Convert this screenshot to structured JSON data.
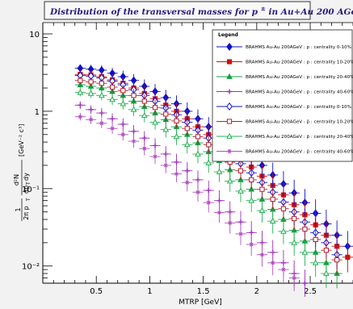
{
  "chart_data": {
    "type": "scatter",
    "title_pre": "Distribution of the transversal masses for p",
    "title_sup": "±",
    "title_post": " in Au+Au 200 AGeV BRAHMS",
    "xlabel": "MTRP [GeV]",
    "ylabel": "1/(2π p_T) d²N/(dp_T dy) [GeV⁻² c³]",
    "ylabel_parts": {
      "frac_num": "1",
      "frac_den": "2π p",
      "frac_den_sub": "T",
      "main": "d²N",
      "main_den": "dp",
      "main_den_sub": "T",
      "main_den_tail": " dy",
      "unit": "[GeV⁻² c³]"
    },
    "xlim": [
      0,
      2.9
    ],
    "ylim": [
      0.006,
      14
    ],
    "yscale": "log",
    "x_ticks": [
      "0.5",
      "1",
      "1.5",
      "2",
      "2.5"
    ],
    "y_ticks": [
      "10⁻²",
      "10⁻¹",
      "1",
      "10"
    ],
    "legend": {
      "title": "Legend",
      "placement": "top-right"
    },
    "series": [
      {
        "name": "BRAHMS Au-Au 200AGeV : p : centrality  0-10%",
        "color": "#1010c8",
        "marker": "diamond-filled",
        "x": [
          0.35,
          0.45,
          0.55,
          0.65,
          0.75,
          0.85,
          0.95,
          1.05,
          1.15,
          1.25,
          1.35,
          1.45,
          1.55,
          1.65,
          1.75,
          1.85,
          1.95,
          2.05,
          2.15,
          2.25,
          2.35,
          2.45,
          2.55,
          2.65,
          2.75,
          2.85
        ],
        "y": [
          3.6,
          3.5,
          3.4,
          3.1,
          2.8,
          2.5,
          2.1,
          1.8,
          1.5,
          1.25,
          1.0,
          0.8,
          0.63,
          0.5,
          0.4,
          0.32,
          0.25,
          0.2,
          0.15,
          0.115,
          0.088,
          0.066,
          0.048,
          0.035,
          0.025,
          0.018
        ]
      },
      {
        "name": "BRAHMS Au-Au 200AGeV : p : centrality 10-20%",
        "color": "#cc1010",
        "marker": "square-filled",
        "x": [
          0.35,
          0.45,
          0.55,
          0.65,
          0.75,
          0.85,
          0.95,
          1.05,
          1.15,
          1.25,
          1.35,
          1.45,
          1.55,
          1.65,
          1.75,
          1.85,
          1.95,
          2.05,
          2.15,
          2.25,
          2.35,
          2.45,
          2.55,
          2.65,
          2.75,
          2.85
        ],
        "y": [
          3.0,
          2.95,
          2.8,
          2.55,
          2.3,
          2.0,
          1.7,
          1.45,
          1.2,
          1.0,
          0.8,
          0.63,
          0.5,
          0.4,
          0.31,
          0.24,
          0.19,
          0.145,
          0.11,
          0.083,
          0.062,
          0.046,
          0.034,
          0.025,
          0.018,
          0.013
        ]
      },
      {
        "name": "BRAHMS Au-Au 200AGeV : p : centrality 20-40%",
        "color": "#10a040",
        "marker": "triangle-filled",
        "x": [
          0.35,
          0.45,
          0.55,
          0.65,
          0.75,
          0.85,
          0.95,
          1.05,
          1.15,
          1.25,
          1.35,
          1.45,
          1.55,
          1.65,
          1.75,
          1.85,
          1.95,
          2.05,
          2.15,
          2.25,
          2.35,
          2.45,
          2.55,
          2.65,
          2.75
        ],
        "y": [
          2.2,
          2.1,
          2.0,
          1.8,
          1.6,
          1.35,
          1.15,
          0.95,
          0.78,
          0.63,
          0.5,
          0.39,
          0.3,
          0.23,
          0.175,
          0.13,
          0.098,
          0.073,
          0.054,
          0.04,
          0.029,
          0.021,
          0.015,
          0.011,
          0.008
        ]
      },
      {
        "name": "BRAHMS Au-Au 200AGeV : p : centrality 40-60%",
        "color": "#9a30b8",
        "marker": "cross",
        "x": [
          0.35,
          0.45,
          0.55,
          0.65,
          0.75,
          0.85,
          0.95,
          1.05,
          1.15,
          1.25,
          1.35,
          1.45,
          1.55,
          1.65,
          1.75,
          1.85,
          1.95,
          2.05,
          2.15,
          2.25,
          2.35,
          2.45
        ],
        "y": [
          1.2,
          1.05,
          0.95,
          0.8,
          0.68,
          0.55,
          0.45,
          0.36,
          0.28,
          0.22,
          0.17,
          0.13,
          0.095,
          0.07,
          0.05,
          0.037,
          0.027,
          0.02,
          0.015,
          0.011,
          0.008,
          0.006
        ]
      },
      {
        "name": "BRAHMS Au-Au 200AGeV : p̄ : centrality  0-10%",
        "color": "#1010c8",
        "marker": "diamond-open",
        "x": [
          0.35,
          0.45,
          0.55,
          0.65,
          0.75,
          0.85,
          0.95,
          1.05,
          1.15,
          1.25,
          1.35,
          1.45,
          1.55,
          1.65,
          1.75,
          1.85,
          1.95,
          2.05,
          2.15,
          2.25,
          2.35,
          2.45,
          2.55,
          2.65,
          2.75
        ],
        "y": [
          2.9,
          2.85,
          2.7,
          2.45,
          2.2,
          1.9,
          1.6,
          1.35,
          1.1,
          0.9,
          0.72,
          0.57,
          0.45,
          0.35,
          0.27,
          0.21,
          0.16,
          0.12,
          0.09,
          0.067,
          0.05,
          0.037,
          0.027,
          0.02,
          0.014
        ]
      },
      {
        "name": "BRAHMS Au-Au 200AGeV : p̄ : centrality 10-20%",
        "color": "#b02030",
        "marker": "square-open",
        "x": [
          0.35,
          0.45,
          0.55,
          0.65,
          0.75,
          0.85,
          0.95,
          1.05,
          1.15,
          1.25,
          1.35,
          1.45,
          1.55,
          1.65,
          1.75,
          1.85,
          1.95,
          2.05,
          2.15,
          2.25,
          2.35,
          2.45,
          2.55,
          2.65,
          2.75
        ],
        "y": [
          2.5,
          2.4,
          2.3,
          2.05,
          1.85,
          1.6,
          1.35,
          1.12,
          0.92,
          0.75,
          0.6,
          0.47,
          0.37,
          0.285,
          0.22,
          0.17,
          0.13,
          0.098,
          0.073,
          0.055,
          0.041,
          0.03,
          0.022,
          0.016,
          0.012
        ]
      },
      {
        "name": "BRAHMS Au-Au 200AGeV : p̄ : centrality 20-40%",
        "color": "#20b050",
        "marker": "triangle-open",
        "x": [
          0.35,
          0.45,
          0.55,
          0.65,
          0.75,
          0.85,
          0.95,
          1.05,
          1.15,
          1.25,
          1.35,
          1.45,
          1.55,
          1.65,
          1.75,
          1.85,
          1.95,
          2.05,
          2.15,
          2.25,
          2.35,
          2.45,
          2.55,
          2.65
        ],
        "y": [
          1.75,
          1.7,
          1.6,
          1.42,
          1.25,
          1.05,
          0.88,
          0.72,
          0.58,
          0.47,
          0.37,
          0.28,
          0.215,
          0.165,
          0.125,
          0.093,
          0.07,
          0.052,
          0.038,
          0.028,
          0.02,
          0.015,
          0.011,
          0.008
        ]
      },
      {
        "name": "BRAHMS Au-Au 200AGeV : p̄ : centrality 40-60%",
        "color": "#b050c0",
        "marker": "star-open",
        "x": [
          0.35,
          0.45,
          0.55,
          0.65,
          0.75,
          0.85,
          0.95,
          1.05,
          1.15,
          1.25,
          1.35,
          1.45,
          1.55,
          1.65,
          1.75,
          1.85,
          1.95,
          2.05,
          2.15,
          2.25,
          2.35
        ],
        "y": [
          0.85,
          0.78,
          0.7,
          0.6,
          0.5,
          0.41,
          0.33,
          0.26,
          0.2,
          0.155,
          0.12,
          0.09,
          0.066,
          0.049,
          0.036,
          0.026,
          0.019,
          0.014,
          0.011,
          0.009,
          0.007
        ]
      }
    ]
  }
}
